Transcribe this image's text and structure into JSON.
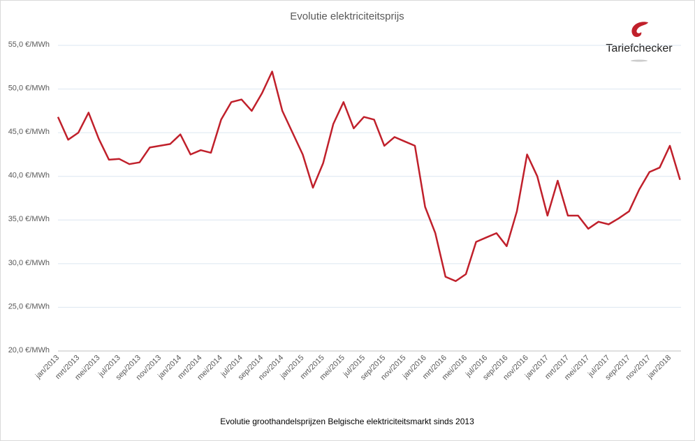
{
  "chart_data": {
    "type": "line",
    "title": "Evolutie elektriciteitsprijs",
    "caption": "Evolutie groothandelsprijzen  Belgische elektriciteitsmarkt sinds 2013",
    "brand": "Tariefchecker",
    "categories": [
      "jan/2013",
      null,
      "mrt/2013",
      null,
      "mei/2013",
      null,
      "jul/2013",
      null,
      "sep/2013",
      null,
      "nov/2013",
      null,
      "jan/2014",
      null,
      "mrt/2014",
      null,
      "mei/2014",
      null,
      "jul/2014",
      null,
      "sep/2014",
      null,
      "nov/2014",
      null,
      "jan/2015",
      null,
      "mrt/2015",
      null,
      "mei/2015",
      null,
      "jul/2015",
      null,
      "sep/2015",
      null,
      "nov/2015",
      null,
      "jan/2016",
      null,
      "mrt/2016",
      null,
      "mei/2016",
      null,
      "jul/2016",
      null,
      "sep/2016",
      null,
      "nov/2016",
      null,
      "jan/2017",
      null,
      "mrt/2017",
      null,
      "mei/2017",
      null,
      "jul/2017",
      null,
      "sep/2017",
      null,
      "nov/2017",
      null,
      "jan/2018",
      null
    ],
    "series": [
      {
        "name": "Elektriciteitsprijs",
        "color": "#c0202b",
        "values": [
          46.8,
          44.2,
          45.0,
          47.3,
          44.3,
          41.9,
          42.0,
          41.4,
          41.6,
          43.3,
          43.5,
          43.7,
          44.8,
          42.5,
          43.0,
          42.7,
          46.5,
          48.5,
          48.8,
          47.5,
          49.5,
          52.0,
          47.5,
          45.0,
          42.5,
          38.7,
          41.5,
          46.0,
          48.5,
          45.5,
          46.8,
          46.5,
          43.5,
          44.5,
          44.0,
          43.5,
          36.5,
          33.5,
          28.5,
          28.0,
          28.8,
          32.5,
          33.0,
          33.5,
          32.0,
          36.0,
          42.5,
          40.0,
          35.5,
          39.5,
          35.5,
          35.5,
          34.0,
          34.8,
          34.5,
          35.2,
          36.0,
          38.5,
          40.5,
          41.0,
          43.5,
          39.6
        ]
      }
    ],
    "ylim": [
      20,
      55
    ],
    "yticks": [
      {
        "value": 20,
        "label": "20,0 €/MWh"
      },
      {
        "value": 25,
        "label": "25,0 €/MWh"
      },
      {
        "value": 30,
        "label": "30,0 €/MWh"
      },
      {
        "value": 35,
        "label": "35,0 €/MWh"
      },
      {
        "value": 40,
        "label": "40,0 €/MWh"
      },
      {
        "value": 45,
        "label": "45,0 €/MWh"
      },
      {
        "value": 50,
        "label": "50,0 €/MWh"
      },
      {
        "value": 55,
        "label": "55,0 €/MWh"
      }
    ],
    "grid": true
  }
}
